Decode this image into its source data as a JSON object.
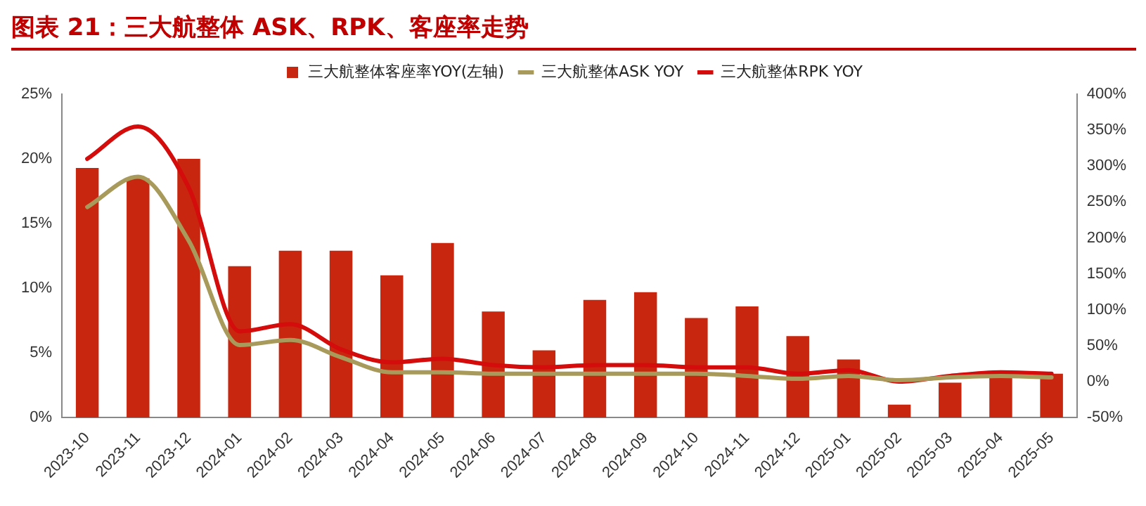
{
  "chart_data": {
    "type": "bar",
    "title": "图表 21：三大航整体 ASK、RPK、客座率走势",
    "categories": [
      "2023-10",
      "2023-11",
      "2023-12",
      "2024-01",
      "2024-02",
      "2024-03",
      "2024-04",
      "2024-05",
      "2024-06",
      "2024-07",
      "2024-08",
      "2024-09",
      "2024-10",
      "2024-11",
      "2024-12",
      "2025-01",
      "2025-02",
      "2025-03",
      "2025-04",
      "2025-05"
    ],
    "series": [
      {
        "name": "三大航整体客座率YOY(左轴)",
        "color": "#c8260e",
        "values": [
          19.3,
          18.5,
          20,
          11.7,
          12.9,
          12.9,
          11,
          13.5,
          8.2,
          5.2,
          9.1,
          9.7,
          7.7,
          8.6,
          6.3,
          4.5,
          1,
          2.7,
          3.4,
          3.4
        ]
      },
      {
        "name": "三大航整体ASK YOY",
        "type": "line",
        "axis": "y2",
        "color": "#a89a5a",
        "values": [
          243,
          285,
          196,
          51,
          58,
          34,
          13,
          13,
          11,
          11,
          11,
          11,
          11,
          8,
          4,
          8,
          2,
          6,
          8,
          6
        ]
      },
      {
        "name": "三大航整体RPK YOY",
        "type": "line",
        "axis": "y2",
        "color": "#d40c0c",
        "values": [
          310,
          355,
          270,
          70,
          80,
          45,
          27,
          32,
          23,
          20,
          23,
          23,
          20,
          20,
          11,
          16,
          0,
          8,
          13,
          11
        ]
      }
    ],
    "ylim": [
      0,
      25
    ],
    "yticks": [
      {
        "value": 0,
        "label": "0%"
      },
      {
        "value": 5,
        "label": "5%"
      },
      {
        "value": 10,
        "label": "10%"
      },
      {
        "value": 15,
        "label": "15%"
      },
      {
        "value": 20,
        "label": "20%"
      },
      {
        "value": 25,
        "label": "25%"
      }
    ],
    "y2lim": [
      -50,
      400
    ],
    "y2ticks": [
      {
        "value": -50,
        "label": "-50%"
      },
      {
        "value": 0,
        "label": "0%"
      },
      {
        "value": 50,
        "label": "50%"
      },
      {
        "value": 100,
        "label": "100%"
      },
      {
        "value": 150,
        "label": "150%"
      },
      {
        "value": 200,
        "label": "200%"
      },
      {
        "value": 250,
        "label": "250%"
      },
      {
        "value": 300,
        "label": "300%"
      },
      {
        "value": 350,
        "label": "350%"
      },
      {
        "value": 400,
        "label": "400%"
      }
    ],
    "grid": false,
    "legend": "top",
    "marker": "none",
    "line_style": "solid"
  }
}
